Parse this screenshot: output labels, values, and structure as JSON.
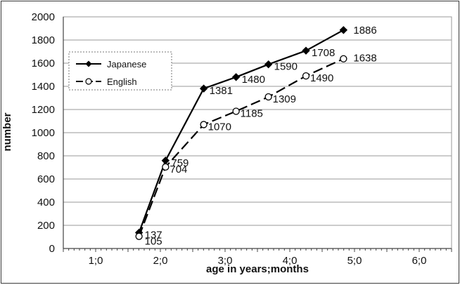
{
  "chart_data": {
    "type": "line",
    "title": "",
    "xlabel": "age in years;months",
    "ylabel": "number",
    "x_ticks": [
      {
        "label": "1;0",
        "x": 1.0
      },
      {
        "label": "2;0",
        "x": 2.0
      },
      {
        "label": "3;0",
        "x": 3.0
      },
      {
        "label": "4;0",
        "x": 4.0
      },
      {
        "label": "5;0",
        "x": 5.0
      },
      {
        "label": "6;0",
        "x": 6.0
      }
    ],
    "xlim": [
      0.5,
      6.5
    ],
    "ylim": [
      0,
      2000
    ],
    "y_ticks": [
      0,
      200,
      400,
      600,
      800,
      1000,
      1200,
      1400,
      1600,
      1800,
      2000
    ],
    "grid": "horizontal",
    "legend_position": "upper-left",
    "series": [
      {
        "name": "Japanese",
        "line_style": "solid",
        "marker": "filled-diamond",
        "color": "#000000",
        "x": [
          1.67,
          2.08,
          2.67,
          3.17,
          3.67,
          4.25,
          4.83
        ],
        "values": [
          137,
          759,
          1381,
          1480,
          1590,
          1708,
          1886
        ],
        "labels": [
          "137",
          "759",
          "1381",
          "1480",
          "1590",
          "1708",
          "1886"
        ]
      },
      {
        "name": "English",
        "line_style": "dashed",
        "marker": "open-circle",
        "color": "#000000",
        "x": [
          1.67,
          2.08,
          2.67,
          3.17,
          3.67,
          4.25,
          4.83
        ],
        "values": [
          105,
          704,
          1070,
          1185,
          1309,
          1490,
          1638
        ],
        "labels": [
          "105",
          "704",
          "1070",
          "1185",
          "1309",
          "1490",
          "1638"
        ]
      }
    ]
  }
}
